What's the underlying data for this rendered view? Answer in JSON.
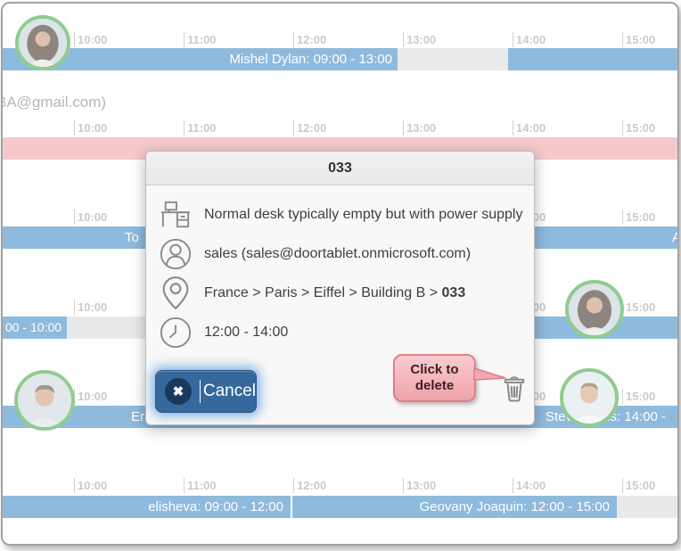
{
  "colors": {
    "bar_blue": "#4a90c9",
    "bar_pink": "#f0a9ae",
    "gray_segment": "#dddddd",
    "accent_navy": "#35689b",
    "ring_green": "#4cae4c",
    "tooltip_pink": "#efa2aa"
  },
  "timeline": {
    "tick_labels": [
      "10:00",
      "11:00",
      "12:00",
      "13:00",
      "14:00",
      "15:00"
    ],
    "rows": [
      {
        "booking": "Mishel Dylan: 09:00 - 13:00"
      },
      {
        "email": "BA@gmail.com)"
      },
      {
        "fragment_left": "To",
        "fragment_right": "A"
      },
      {
        "booking_left": "00 - 10:00"
      },
      {
        "fragment_left": "Er",
        "booking_right": "Steve Davis: 14:00 -"
      },
      {
        "booking_left": "elisheva: 09:00 - 12:00",
        "booking_right": "Geovany Joaquin: 12:00 - 15:00"
      }
    ]
  },
  "modal": {
    "title": "033",
    "details": [
      {
        "icon": "desk-icon",
        "text": "Normal desk typically empty but with power supply"
      },
      {
        "icon": "person-icon",
        "text": "sales (sales@doortablet.onmicrosoft.com)"
      },
      {
        "icon": "location-pin-icon",
        "text": "France > Paris > Eiffel > Building B > ",
        "bold": "033"
      },
      {
        "icon": "clock-icon",
        "text": "12:00 - 14:00"
      }
    ],
    "cancel_label": "Cancel",
    "tooltip_line1": "Click to",
    "tooltip_line2": "delete"
  }
}
